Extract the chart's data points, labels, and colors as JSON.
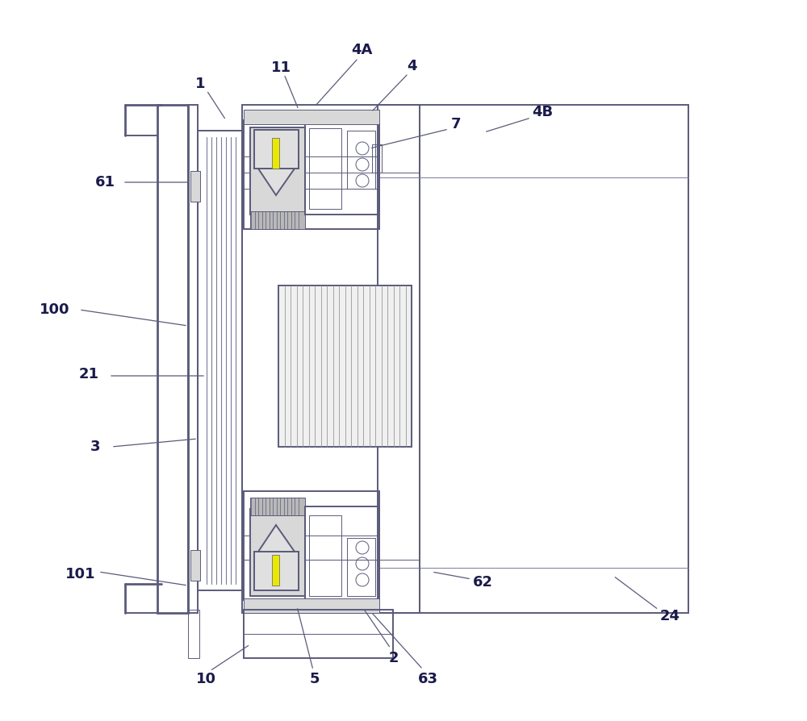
{
  "bg_color": "#ffffff",
  "lc": "#5a5a7a",
  "lc2": "#7a7a9a",
  "label_color": "#1a1a4a",
  "yellow_color": "#e8e800",
  "gray_light": "#d8d8d8",
  "gray_med": "#b8b8b8",
  "figsize": [
    10.0,
    8.94
  ],
  "lw_main": 1.4,
  "lw_thin": 0.7,
  "lw_thick": 2.0
}
